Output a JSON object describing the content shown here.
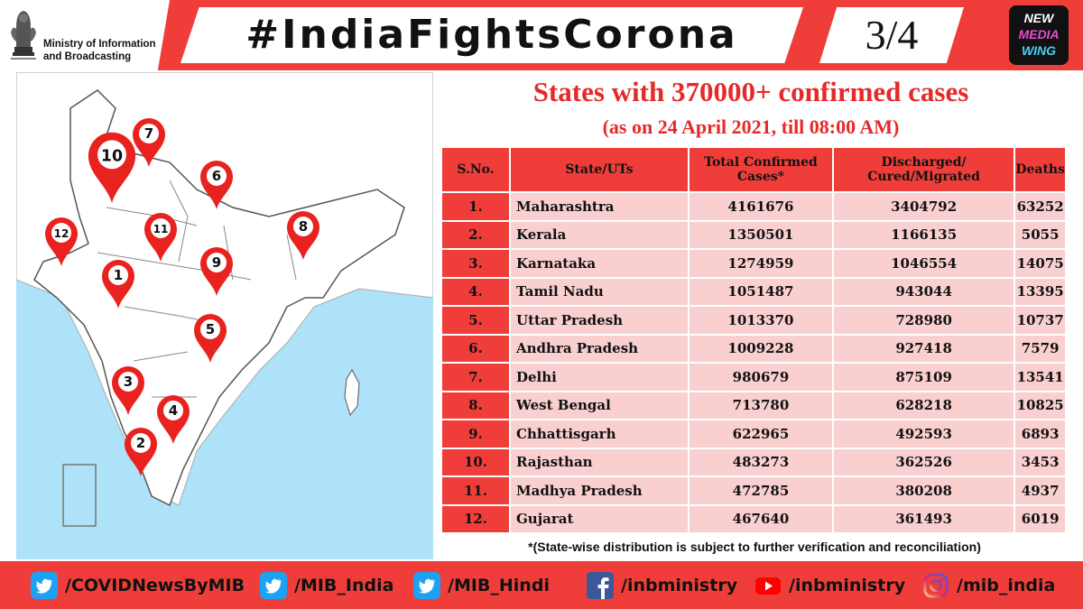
{
  "header": {
    "ministry_line1": "Ministry of Information",
    "ministry_line2": "and Broadcasting",
    "hashtag": "#IndiaFightsCorona",
    "page": "3/4",
    "logo_lines": [
      "NEW",
      "MEDIA",
      "WING"
    ]
  },
  "title": "States with 370000+ confirmed cases",
  "subtitle": "(as on 24 April 2021, till 08:00 AM)",
  "table": {
    "headers": [
      "S.No.",
      "State/UTs",
      "Total Confirmed Cases*",
      "Discharged/ Cured/Migrated",
      "Deaths"
    ],
    "rows": [
      {
        "no": "1.",
        "state": "Maharashtra",
        "confirmed": "4161676",
        "discharged": "3404792",
        "deaths": "63252"
      },
      {
        "no": "2.",
        "state": "Kerala",
        "confirmed": "1350501",
        "discharged": "1166135",
        "deaths": "5055"
      },
      {
        "no": "3.",
        "state": "Karnataka",
        "confirmed": "1274959",
        "discharged": "1046554",
        "deaths": "14075"
      },
      {
        "no": "4.",
        "state": "Tamil Nadu",
        "confirmed": "1051487",
        "discharged": "943044",
        "deaths": "13395"
      },
      {
        "no": "5.",
        "state": "Uttar Pradesh",
        "confirmed": "1013370",
        "discharged": "728980",
        "deaths": "10737"
      },
      {
        "no": "6.",
        "state": "Andhra Pradesh",
        "confirmed": "1009228",
        "discharged": "927418",
        "deaths": "7579"
      },
      {
        "no": "7.",
        "state": "Delhi",
        "confirmed": "980679",
        "discharged": "875109",
        "deaths": "13541"
      },
      {
        "no": "8.",
        "state": "West Bengal",
        "confirmed": "713780",
        "discharged": "628218",
        "deaths": "10825"
      },
      {
        "no": "9.",
        "state": "Chhattisgarh",
        "confirmed": "622965",
        "discharged": "492593",
        "deaths": "6893"
      },
      {
        "no": "10.",
        "state": "Rajasthan",
        "confirmed": "483273",
        "discharged": "362526",
        "deaths": "3453"
      },
      {
        "no": "11.",
        "state": "Madhya Pradesh",
        "confirmed": "472785",
        "discharged": "380208",
        "deaths": "4937"
      },
      {
        "no": "12.",
        "state": "Gujarat",
        "confirmed": "467640",
        "discharged": "361493",
        "deaths": "6019"
      }
    ]
  },
  "note": "*(State-wise distribution is subject to further verification and reconciliation)",
  "map": {
    "markers": [
      {
        "label": "1"
      },
      {
        "label": "2"
      },
      {
        "label": "3"
      },
      {
        "label": "4"
      },
      {
        "label": "5"
      },
      {
        "label": "6"
      },
      {
        "label": "7"
      },
      {
        "label": "8"
      },
      {
        "label": "9"
      },
      {
        "label": "10"
      },
      {
        "label": "11"
      },
      {
        "label": "12"
      }
    ]
  },
  "footer": {
    "links": [
      {
        "platform": "twitter",
        "icon": "twitter-icon",
        "handle": "/COVIDNewsByMIB"
      },
      {
        "platform": "twitter",
        "icon": "twitter-icon",
        "handle": "/MIB_India"
      },
      {
        "platform": "twitter",
        "icon": "twitter-icon",
        "handle": "/MIB_Hindi"
      },
      {
        "platform": "facebook",
        "icon": "facebook-icon",
        "handle": "/inbministry"
      },
      {
        "platform": "youtube",
        "icon": "youtube-icon",
        "handle": "/inbministry"
      },
      {
        "platform": "instagram",
        "icon": "instagram-icon",
        "handle": "/mib_india"
      }
    ]
  },
  "colors": {
    "accent_red": "#ef3e3a",
    "title_red": "#e52a2a",
    "row_pink": "#f9cfcf",
    "sea_blue": "#aee2f8",
    "twitter_blue": "#1da1f2",
    "facebook_blue": "#3b5998",
    "youtube_red": "#ff0000"
  }
}
